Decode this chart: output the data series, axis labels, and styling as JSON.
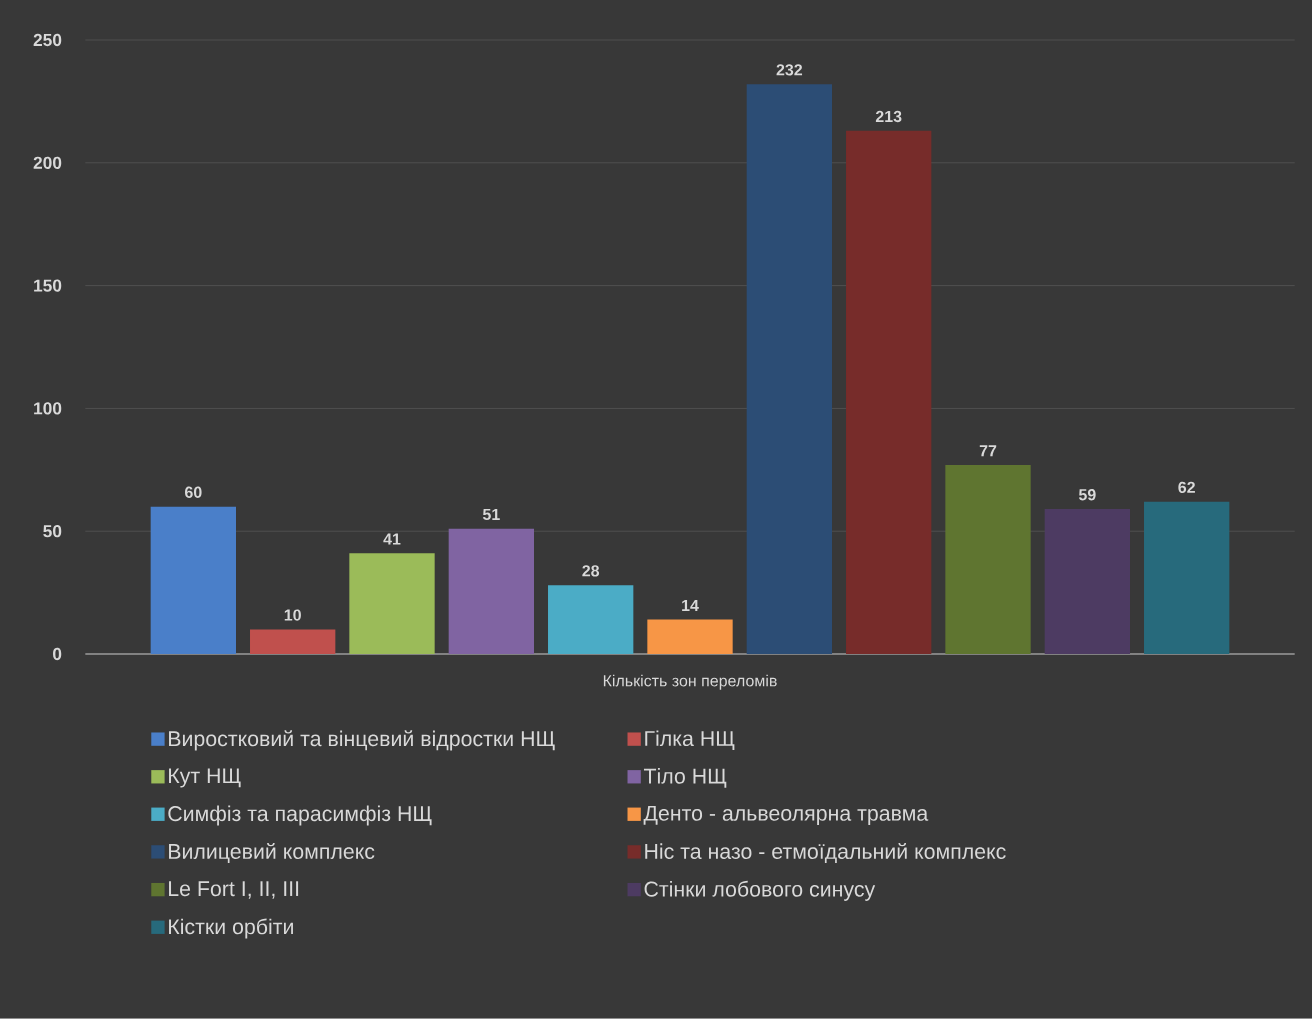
{
  "chart_data": {
    "type": "bar",
    "categories": [
      "Кількість зон переломів"
    ],
    "series": [
      {
        "name": "Виростковий та вінцевий відростки НЩ",
        "color": "#4a7fc9",
        "values": [
          60
        ]
      },
      {
        "name": "Гілка НЩ",
        "color": "#c0504d",
        "values": [
          10
        ]
      },
      {
        "name": "Кут НЩ",
        "color": "#9bbb59",
        "values": [
          41
        ]
      },
      {
        "name": "Тіло НЩ",
        "color": "#8064a2",
        "values": [
          51
        ]
      },
      {
        "name": "Симфіз та парасимфіз НЩ",
        "color": "#4bacc6",
        "values": [
          28
        ]
      },
      {
        "name": "Денто - альвеолярна травма",
        "color": "#f79646",
        "values": [
          14
        ]
      },
      {
        "name": "Вилицевий комплекс",
        "color": "#2c4d75",
        "values": [
          232
        ]
      },
      {
        "name": "Ніс та назо - етмоїдальний комплекс",
        "color": "#772c2a",
        "values": [
          213
        ]
      },
      {
        "name": "Le Fort I, II, III",
        "color": "#5f7530",
        "values": [
          77
        ]
      },
      {
        "name": "Стінки лобового синусу",
        "color": "#4d3b62",
        "values": [
          59
        ]
      },
      {
        "name": "Кістки орбіти",
        "color": "#276a7c",
        "values": [
          62
        ]
      }
    ],
    "ylim": [
      0,
      250
    ],
    "yticks": [
      0,
      50,
      100,
      150,
      200,
      250
    ],
    "grid": "y",
    "legend": "bottom",
    "data_labels": true
  }
}
